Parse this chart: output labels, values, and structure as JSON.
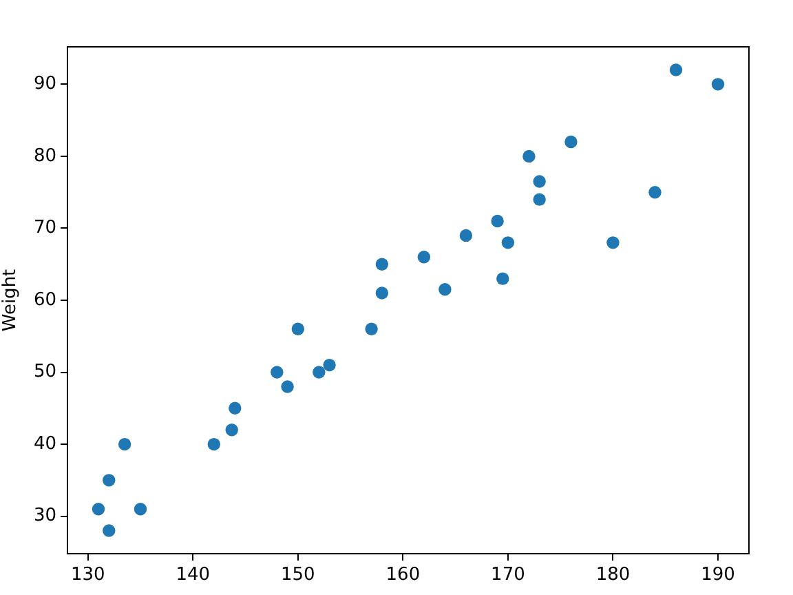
{
  "chart_data": {
    "type": "scatter",
    "ylabel": "Weight",
    "x": [
      131,
      132,
      132,
      133.5,
      135,
      142,
      143.7,
      144,
      148,
      149,
      152,
      153,
      150,
      157,
      158,
      158,
      162,
      164,
      166,
      169,
      170,
      169.5,
      172,
      173,
      173,
      176,
      180,
      184,
      186,
      190
    ],
    "values": [
      31,
      35,
      28,
      40,
      31,
      40,
      42,
      45,
      50,
      48,
      50,
      51,
      56,
      56,
      61,
      65,
      66,
      61.5,
      69,
      71,
      68,
      63,
      80,
      76.5,
      74,
      82,
      68,
      75,
      92,
      90
    ],
    "color": "#1f77b4",
    "marker": "circle",
    "xlim": [
      128.05,
      192.95
    ],
    "ylim": [
      24.8,
      95.2
    ],
    "xticks": [
      130,
      140,
      150,
      160,
      170,
      180,
      190
    ],
    "yticks": [
      30,
      40,
      50,
      60,
      70,
      80,
      90
    ]
  }
}
